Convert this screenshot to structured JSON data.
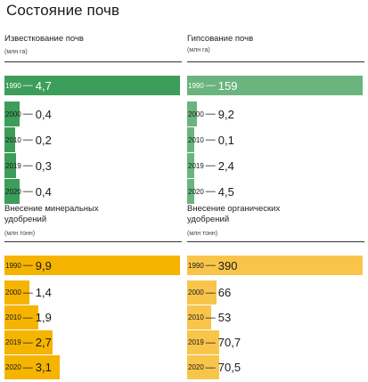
{
  "page_title": "Состояние почв",
  "dash": "—",
  "chart_data": [
    {
      "type": "bar",
      "orientation": "horizontal",
      "title": "Известкование почв",
      "unit": "(млн га)",
      "color": "#3c9e5a",
      "categories": [
        "1990",
        "2000",
        "2010",
        "2019",
        "2020"
      ],
      "value_labels": [
        "4,7",
        "0,4",
        "0,2",
        "0,3",
        "0,4"
      ],
      "values": [
        4.7,
        0.4,
        0.2,
        0.3,
        0.4
      ]
    },
    {
      "type": "bar",
      "orientation": "horizontal",
      "title": "Гипсование почв",
      "unit": "(млн га)",
      "color": "#6ab47e",
      "categories": [
        "1990",
        "2000",
        "2010",
        "2019",
        "2020"
      ],
      "value_labels": [
        "159",
        "9,2",
        "0,1",
        "2,4",
        "4,5"
      ],
      "values": [
        159,
        9.2,
        0.1,
        2.4,
        4.5
      ]
    },
    {
      "type": "bar",
      "orientation": "horizontal",
      "title": "Внесение минеральных удобрений",
      "unit": "(млн тонн)",
      "color": "#f5b400",
      "categories": [
        "1990",
        "2000",
        "2010",
        "2019",
        "2020"
      ],
      "value_labels": [
        "9,9",
        "1,4",
        "1,9",
        "2,7",
        "3,1"
      ],
      "values": [
        9.9,
        1.4,
        1.9,
        2.7,
        3.1
      ]
    },
    {
      "type": "bar",
      "orientation": "horizontal",
      "title": "Внесение органических удобрений",
      "unit": "(млн тонн)",
      "color": "#f8c54a",
      "categories": [
        "1990",
        "2000",
        "2010",
        "2019",
        "2020"
      ],
      "value_labels": [
        "390",
        "66",
        "53",
        "70,7",
        "70,5"
      ],
      "values": [
        390,
        66,
        53,
        70.7,
        70.5
      ]
    }
  ]
}
